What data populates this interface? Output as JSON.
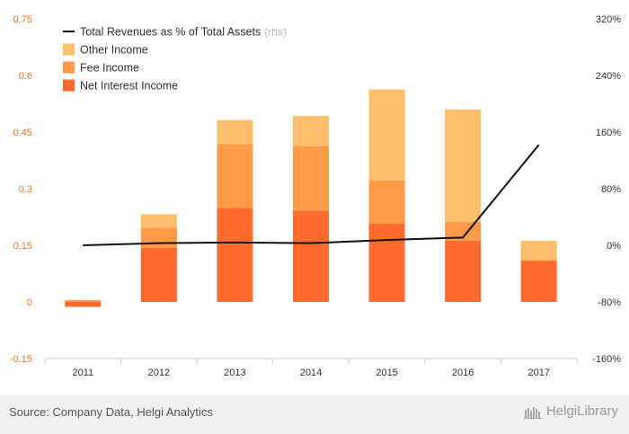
{
  "chart_data": {
    "type": "bar",
    "stacked": true,
    "categories": [
      "2011",
      "2012",
      "2013",
      "2014",
      "2015",
      "2016",
      "2017"
    ],
    "series": [
      {
        "name": "Net Interest Income",
        "color": "#ff6a2f",
        "values": [
          -0.013,
          0.143,
          0.249,
          0.242,
          0.207,
          0.162,
          0.109
        ]
      },
      {
        "name": "Fee Income",
        "color": "#ff9a48",
        "values": [
          0.005,
          0.054,
          0.169,
          0.171,
          0.115,
          0.05,
          0.003
        ]
      },
      {
        "name": "Other Income",
        "color": "#ffbf6c",
        "values": [
          0.0,
          0.035,
          0.064,
          0.08,
          0.241,
          0.298,
          0.05
        ]
      }
    ],
    "line_series": {
      "name": "Total Revenues as % of Total Assets",
      "name_suffix": "(rhs)",
      "color": "#111111",
      "axis": "right",
      "values": [
        0.0,
        3.0,
        4.0,
        3.0,
        7.5,
        11.0,
        142.0
      ]
    },
    "ylim": [
      -0.15,
      0.75
    ],
    "yticks": [
      -0.15,
      0,
      0.15,
      0.3,
      0.45,
      0.6,
      0.75
    ],
    "ytick_labels": [
      "-0.15",
      "0",
      "0.15",
      "0.3",
      "0.45",
      "0.6",
      "0.75"
    ],
    "y2lim": [
      -160,
      320
    ],
    "y2ticks": [
      -160,
      -80,
      0,
      80,
      160,
      240,
      320
    ],
    "y2tick_labels": [
      "-160%",
      "-80%",
      "0%",
      "80%",
      "160%",
      "240%",
      "320%"
    ],
    "legend": {
      "position": "top-left",
      "entries": [
        {
          "label": "Total Revenues as % of Total Assets",
          "suffix": "(rhs)",
          "kind": "line",
          "color": "#111111"
        },
        {
          "label": "Other Income",
          "kind": "box",
          "color": "#ffbf6c"
        },
        {
          "label": "Fee Income",
          "kind": "box",
          "color": "#ff9a48"
        },
        {
          "label": "Net Interest Income",
          "kind": "box",
          "color": "#ff6a2f"
        }
      ]
    },
    "grid": false
  },
  "footer": {
    "source": "Source: Company Data, Helgi Analytics",
    "brand": "HelgiLibrary"
  }
}
